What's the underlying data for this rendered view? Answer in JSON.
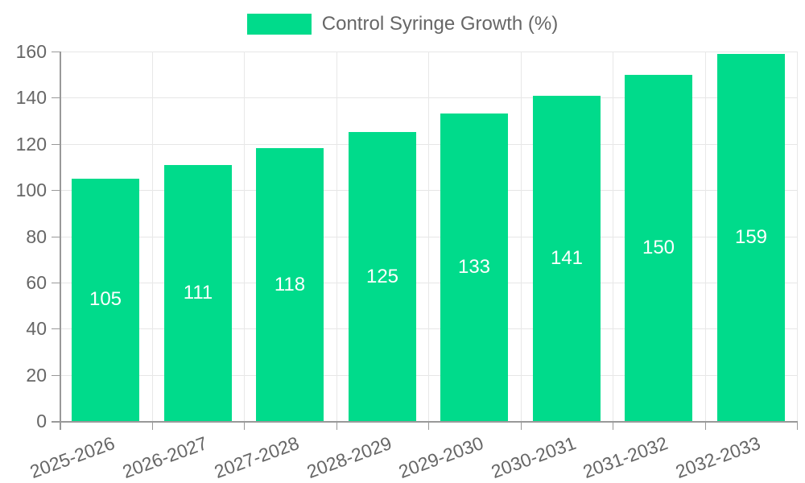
{
  "legend": {
    "label": "Control Syringe Growth (%)"
  },
  "chart_data": {
    "type": "bar",
    "title": "Control Syringe Growth (%)",
    "series_name": "Control Syringe Growth (%)",
    "categories": [
      "2025-2026",
      "2026-2027",
      "2027-2028",
      "2028-2029",
      "2029-2030",
      "2030-2031",
      "2031-2032",
      "2032-2033"
    ],
    "values": [
      105,
      111,
      118,
      125,
      133,
      141,
      150,
      159
    ],
    "xlabel": "",
    "ylabel": "",
    "ylim": [
      0,
      160
    ],
    "yticks": [
      0,
      20,
      40,
      60,
      80,
      100,
      120,
      140,
      160
    ],
    "grid": true,
    "legend_position": "top-center",
    "value_labels": "inside-center-white",
    "colors": {
      "bar": "#00DB8B",
      "axis_text": "#666666",
      "axis_line": "#999999",
      "grid_line": "#e6e6e6",
      "value_label": "#ffffff",
      "background": "#ffffff"
    }
  }
}
